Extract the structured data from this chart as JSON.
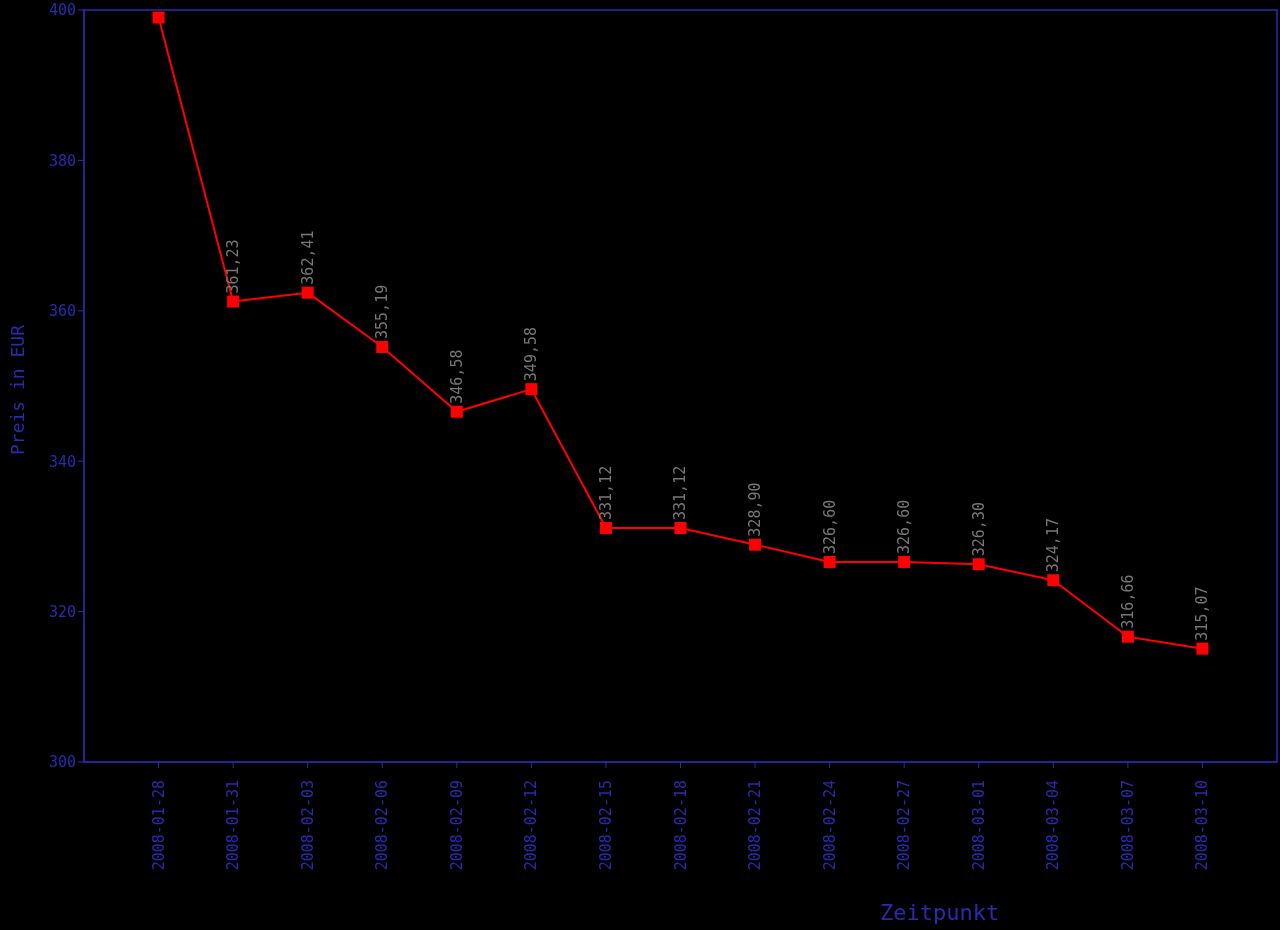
{
  "chart_data": {
    "type": "line",
    "xlabel": "Zeitpunkt",
    "ylabel": "Preis in EUR",
    "categories": [
      "2008-01-28",
      "2008-01-31",
      "2008-02-03",
      "2008-02-06",
      "2008-02-09",
      "2008-02-12",
      "2008-02-15",
      "2008-02-18",
      "2008-02-21",
      "2008-02-24",
      "2008-02-27",
      "2008-03-01",
      "2008-03-04",
      "2008-03-07",
      "2008-03-10"
    ],
    "series": [
      {
        "color": "#ff0000",
        "values": [
          399.0,
          361.23,
          362.41,
          355.19,
          346.58,
          349.58,
          331.12,
          331.12,
          328.9,
          326.6,
          326.6,
          326.3,
          324.17,
          316.66,
          315.07
        ],
        "value_labels": [
          null,
          "361,23",
          "362,41",
          "355,19",
          "346,58",
          "349,58",
          "331,12",
          "331,12",
          "328,90",
          "326,60",
          "326,60",
          "326,30",
          "324,17",
          "316,66",
          "315,07"
        ]
      }
    ],
    "ylim": [
      300,
      400
    ],
    "yticks": [
      300,
      320,
      340,
      360,
      380,
      400
    ],
    "grid": false,
    "legend": false,
    "marker": "square",
    "line_style": "solid"
  }
}
